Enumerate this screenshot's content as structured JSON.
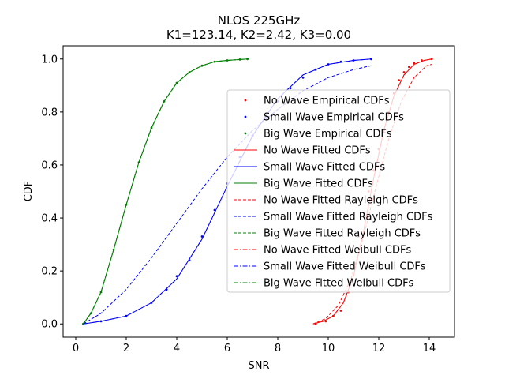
{
  "chart_data": {
    "type": "line",
    "title_line1": "NLOS 225GHz",
    "title_line2": "K1=123.14, K2=2.42, K3=0.00",
    "xlabel": "SNR",
    "ylabel": "CDF",
    "xlim": [
      -0.5,
      15.0
    ],
    "ylim": [
      -0.05,
      1.05
    ],
    "xticks": [
      0,
      2,
      4,
      6,
      8,
      10,
      12,
      14
    ],
    "yticks": [
      0.0,
      0.2,
      0.4,
      0.6,
      0.8,
      1.0
    ],
    "xtick_labels": [
      "0",
      "2",
      "4",
      "6",
      "8",
      "10",
      "12",
      "14"
    ],
    "ytick_labels": [
      "0.0",
      "0.2",
      "0.4",
      "0.6",
      "0.8",
      "1.0"
    ],
    "grid": false,
    "legend_placement": "center-right",
    "colors": {
      "No Wave": "#ff0000",
      "Small Wave": "#0000ff",
      "Big Wave": "#008000"
    },
    "series": [
      {
        "name": "No Wave Empirical CDFs",
        "group": "No Wave",
        "style": "points",
        "x": [
          9.5,
          9.9,
          10.2,
          10.5,
          10.8,
          11.0,
          11.2,
          11.4,
          11.6,
          11.8,
          12.0,
          12.2,
          12.4,
          12.6,
          12.8,
          13.0,
          13.2,
          13.4,
          13.7,
          14.1
        ],
        "y": [
          0.0,
          0.01,
          0.03,
          0.05,
          0.12,
          0.22,
          0.33,
          0.42,
          0.5,
          0.58,
          0.66,
          0.73,
          0.8,
          0.87,
          0.92,
          0.95,
          0.97,
          0.985,
          0.995,
          1.0
        ]
      },
      {
        "name": "Small Wave Empirical CDFs",
        "group": "Small Wave",
        "style": "points",
        "x": [
          0.3,
          1.0,
          2.0,
          3.0,
          3.6,
          4.0,
          4.5,
          5.0,
          5.5,
          6.0,
          6.5,
          7.0,
          7.5,
          8.0,
          8.5,
          9.0,
          9.5,
          10.0,
          10.5,
          11.0,
          11.7
        ],
        "y": [
          0.0,
          0.01,
          0.03,
          0.08,
          0.13,
          0.18,
          0.24,
          0.33,
          0.43,
          0.53,
          0.63,
          0.71,
          0.78,
          0.84,
          0.89,
          0.93,
          0.96,
          0.98,
          0.99,
          0.995,
          1.0
        ]
      },
      {
        "name": "Big Wave Empirical CDFs",
        "group": "Big Wave",
        "style": "points",
        "x": [
          0.3,
          0.6,
          1.0,
          1.5,
          2.0,
          2.5,
          3.0,
          3.5,
          4.0,
          4.5,
          5.0,
          5.5,
          6.0,
          6.5,
          6.8
        ],
        "y": [
          0.0,
          0.04,
          0.12,
          0.28,
          0.45,
          0.61,
          0.74,
          0.84,
          0.91,
          0.95,
          0.975,
          0.99,
          0.995,
          0.998,
          1.0
        ]
      },
      {
        "name": "No Wave Fitted CDFs",
        "group": "No Wave",
        "style": "solid",
        "x": [
          9.4,
          9.8,
          10.2,
          10.6,
          11.0,
          11.4,
          11.8,
          12.2,
          12.6,
          13.0,
          13.4,
          13.8,
          14.1
        ],
        "y": [
          0.0,
          0.01,
          0.03,
          0.08,
          0.18,
          0.35,
          0.55,
          0.73,
          0.86,
          0.94,
          0.98,
          0.995,
          1.0
        ]
      },
      {
        "name": "Small Wave Fitted CDFs",
        "group": "Small Wave",
        "style": "solid",
        "x": [
          0.3,
          1.0,
          2.0,
          3.0,
          4.0,
          5.0,
          6.0,
          7.0,
          8.0,
          9.0,
          10.0,
          11.0,
          11.7
        ],
        "y": [
          0.0,
          0.01,
          0.03,
          0.08,
          0.17,
          0.32,
          0.52,
          0.71,
          0.85,
          0.94,
          0.98,
          0.995,
          1.0
        ]
      },
      {
        "name": "Big Wave Fitted CDFs",
        "group": "Big Wave",
        "style": "solid",
        "x": [
          0.3,
          0.6,
          1.0,
          1.5,
          2.0,
          2.5,
          3.0,
          3.5,
          4.0,
          4.5,
          5.0,
          5.5,
          6.0,
          6.8
        ],
        "y": [
          0.0,
          0.04,
          0.12,
          0.28,
          0.45,
          0.61,
          0.74,
          0.84,
          0.91,
          0.95,
          0.975,
          0.99,
          0.995,
          1.0
        ]
      },
      {
        "name": "No Wave Fitted Rayleigh CDFs",
        "group": "No Wave",
        "style": "dashed",
        "x": [
          9.4,
          9.9,
          10.4,
          10.9,
          11.4,
          11.9,
          12.4,
          12.9,
          13.4,
          13.9,
          14.1
        ],
        "y": [
          0.0,
          0.02,
          0.07,
          0.17,
          0.33,
          0.52,
          0.7,
          0.84,
          0.93,
          0.975,
          0.98
        ]
      },
      {
        "name": "Small Wave Fitted Rayleigh CDFs",
        "group": "Small Wave",
        "style": "dashed",
        "x": [
          0.3,
          1.0,
          2.0,
          3.0,
          4.0,
          5.0,
          6.0,
          7.0,
          8.0,
          9.0,
          10.0,
          11.0,
          11.7
        ],
        "y": [
          0.0,
          0.04,
          0.13,
          0.25,
          0.38,
          0.51,
          0.63,
          0.73,
          0.81,
          0.88,
          0.93,
          0.96,
          0.975
        ]
      },
      {
        "name": "Big Wave Fitted Rayleigh CDFs",
        "group": "Big Wave",
        "style": "dashed",
        "x": [
          0.3,
          0.6,
          1.0,
          1.5,
          2.0,
          2.5,
          3.0,
          3.5,
          4.0,
          4.5,
          5.0,
          5.5,
          6.0,
          6.8
        ],
        "y": [
          0.0,
          0.04,
          0.12,
          0.28,
          0.45,
          0.61,
          0.74,
          0.84,
          0.91,
          0.95,
          0.975,
          0.99,
          0.995,
          1.0
        ]
      },
      {
        "name": "No Wave Fitted Weibull CDFs",
        "group": "No Wave",
        "style": "dashdot",
        "x": [
          9.4,
          9.8,
          10.2,
          10.6,
          11.0,
          11.4,
          11.8,
          12.2,
          12.6,
          13.0,
          13.4,
          13.8,
          14.1
        ],
        "y": [
          0.0,
          0.01,
          0.03,
          0.08,
          0.18,
          0.35,
          0.55,
          0.73,
          0.86,
          0.94,
          0.98,
          0.995,
          1.0
        ]
      },
      {
        "name": "Small Wave Fitted Weibull CDFs",
        "group": "Small Wave",
        "style": "dashdot",
        "x": [
          0.3,
          1.0,
          2.0,
          3.0,
          4.0,
          5.0,
          6.0,
          7.0,
          8.0,
          9.0,
          10.0,
          11.0,
          11.7
        ],
        "y": [
          0.0,
          0.01,
          0.03,
          0.08,
          0.17,
          0.32,
          0.52,
          0.71,
          0.85,
          0.94,
          0.98,
          0.995,
          1.0
        ]
      },
      {
        "name": "Big Wave Fitted Weibull CDFs",
        "group": "Big Wave",
        "style": "dashdot",
        "x": [
          0.3,
          0.6,
          1.0,
          1.5,
          2.0,
          2.5,
          3.0,
          3.5,
          4.0,
          4.5,
          5.0,
          5.5,
          6.0,
          6.8
        ],
        "y": [
          0.0,
          0.04,
          0.12,
          0.28,
          0.45,
          0.61,
          0.74,
          0.84,
          0.91,
          0.95,
          0.975,
          0.99,
          0.995,
          1.0
        ]
      }
    ]
  }
}
